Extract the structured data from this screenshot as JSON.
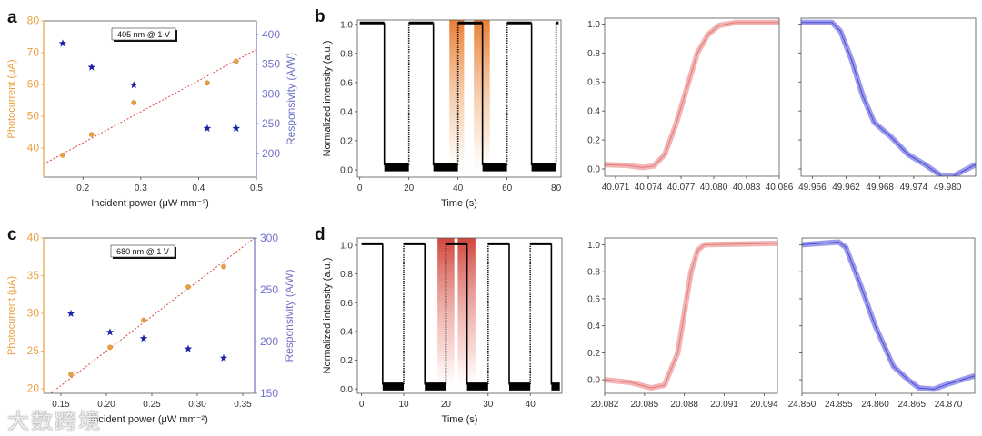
{
  "colors": {
    "photocurrent": "#e8a040",
    "responsivity": "#1a22a8",
    "fit": "#e0443c",
    "axis_right": "#7070c8",
    "rise": "#e87878",
    "fall": "#4a4ad8",
    "highlight_b": "#e8782a",
    "highlight_d": "#d03a30"
  },
  "watermark": "大数跨境",
  "chart_data": [
    {
      "id": "a",
      "panel_label": "a",
      "type": "scatter",
      "annotation": "405 nm @ 1 V",
      "xlabel": "Incident power (μW mm⁻²)",
      "ylabel": "Photocurrent (μA)",
      "y2label": "Responsivity (A/W)",
      "xlim": [
        0.132,
        0.5
      ],
      "ylim": [
        30.9,
        80
      ],
      "y2lim": [
        160,
        423
      ],
      "xticks": [
        0.2,
        0.3,
        0.4,
        0.5
      ],
      "xticklabels": [
        "0.2",
        "0.3",
        "0.4",
        "0.5"
      ],
      "yticks": [
        40,
        50,
        60,
        70,
        80
      ],
      "yticklabels": [
        "40",
        "50",
        "60",
        "70",
        "80"
      ],
      "y2ticks": [
        200,
        250,
        300,
        350,
        400
      ],
      "y2ticklabels": [
        "200",
        "250",
        "300",
        "350",
        "400"
      ],
      "series": [
        {
          "name": "Photocurrent",
          "axis": "left",
          "marker": "circle",
          "x": [
            0.165,
            0.215,
            0.288,
            0.415,
            0.465
          ],
          "y": [
            37.8,
            44.3,
            54.3,
            60.5,
            67.3
          ]
        },
        {
          "name": "Responsivity",
          "axis": "right",
          "marker": "star",
          "x": [
            0.165,
            0.215,
            0.288,
            0.415,
            0.465
          ],
          "y": [
            385,
            345,
            315,
            242,
            242
          ]
        }
      ],
      "fit": {
        "x": [
          0.132,
          0.5
        ],
        "y": [
          35,
          71
        ]
      }
    },
    {
      "id": "c",
      "panel_label": "c",
      "type": "scatter",
      "annotation": "680 nm @ 1 V",
      "xlabel": "Incident power (μW mm⁻²)",
      "ylabel": "Photocurrent (μA)",
      "y2label": "Responsivity (A/W)",
      "xlim": [
        0.131,
        0.363
      ],
      "ylim": [
        19.4,
        40
      ],
      "y2lim": [
        150,
        300
      ],
      "xticks": [
        0.15,
        0.2,
        0.25,
        0.3,
        0.35
      ],
      "xticklabels": [
        "0.15",
        "0.20",
        "0.25",
        "0.30",
        "0.35"
      ],
      "yticks": [
        20,
        25,
        30,
        35,
        40
      ],
      "yticklabels": [
        "20",
        "25",
        "30",
        "35",
        "40"
      ],
      "y2ticks": [
        150,
        200,
        250,
        300
      ],
      "y2ticklabels": [
        "150",
        "200",
        "250",
        "300"
      ],
      "series": [
        {
          "name": "Photocurrent",
          "axis": "left",
          "marker": "circle",
          "x": [
            0.161,
            0.204,
            0.241,
            0.29,
            0.329
          ],
          "y": [
            21.9,
            25.5,
            29.1,
            33.5,
            36.2
          ]
        },
        {
          "name": "Responsivity",
          "axis": "right",
          "marker": "star",
          "x": [
            0.161,
            0.204,
            0.241,
            0.29,
            0.329
          ],
          "y": [
            227,
            209,
            203,
            193,
            184
          ]
        }
      ],
      "fit": {
        "x": [
          0.139,
          0.363
        ],
        "y": [
          19.4,
          40
        ]
      }
    },
    {
      "id": "b",
      "panel_label": "b",
      "type": "line",
      "xlabel": "Time (s)",
      "ylabel": "Normalized intensity (a.u.)",
      "xlim": [
        -1,
        82
      ],
      "ylim": [
        -0.05,
        1.03
      ],
      "xticks": [
        0,
        20,
        40,
        60,
        80
      ],
      "xticklabels": [
        "0",
        "20",
        "40",
        "60",
        "80"
      ],
      "yticks": [
        0,
        0.2,
        0.4,
        0.6,
        0.8,
        1.0
      ],
      "yticklabels": [
        "0.0",
        "0.2",
        "0.4",
        "0.6",
        "0.8",
        "1.0"
      ],
      "square_wave": {
        "period": 10,
        "high": 1.01,
        "low": 0.03,
        "start": 0,
        "end": 81
      },
      "highlights": [
        [
          36.5,
          42.5
        ],
        [
          46.5,
          53
        ]
      ]
    },
    {
      "id": "d",
      "panel_label": "d",
      "type": "line",
      "xlabel": "Time (s)",
      "ylabel": "Normalized intensity (a.u.)",
      "xlim": [
        -1,
        47.5
      ],
      "ylim": [
        -0.03,
        1.05
      ],
      "xticks": [
        0,
        10,
        20,
        30,
        40
      ],
      "xticklabels": [
        "0",
        "10",
        "20",
        "30",
        "40"
      ],
      "yticks": [
        0,
        0.2,
        0.4,
        0.6,
        0.8,
        1.0
      ],
      "yticklabels": [
        "0.0",
        "0.2",
        "0.4",
        "0.6",
        "0.8",
        "1.0"
      ],
      "square_wave": {
        "period": 5,
        "high": 1.01,
        "low": 0.03,
        "start": 0,
        "end": 47
      },
      "highlights": [
        [
          18,
          22
        ],
        [
          22.8,
          27
        ]
      ]
    },
    {
      "id": "b-rise",
      "type": "line",
      "color_key": "rise",
      "xlim": [
        40.07,
        40.086
      ],
      "ylim": [
        -0.05,
        1.04
      ],
      "xticks": [
        40.071,
        40.074,
        40.077,
        40.08,
        40.083,
        40.086
      ],
      "xticklabels": [
        "40.071",
        "40.074",
        "40.077",
        "40.080",
        "40.083",
        "40.086"
      ],
      "yticks": [
        0,
        0.2,
        0.4,
        0.6,
        0.8,
        1.0
      ],
      "yticklabels": [
        "0.0",
        "0.2",
        "0.4",
        "0.6",
        "0.8",
        "1.0"
      ],
      "x": [
        40.07,
        40.072,
        40.0735,
        40.0745,
        40.0755,
        40.0765,
        40.0775,
        40.0785,
        40.0795,
        40.0805,
        40.082,
        40.086
      ],
      "y": [
        0.03,
        0.025,
        0.01,
        0.02,
        0.1,
        0.3,
        0.55,
        0.8,
        0.93,
        0.99,
        1.01,
        1.01
      ]
    },
    {
      "id": "b-fall",
      "type": "line",
      "color_key": "fall",
      "xlim": [
        49.954,
        49.985
      ],
      "ylim": [
        -0.05,
        1.04
      ],
      "xticks": [
        49.956,
        49.962,
        49.968,
        49.974,
        49.98
      ],
      "xticklabels": [
        "49.956",
        "49.962",
        "49.968",
        "49.974",
        "49.980"
      ],
      "yticks": [
        0,
        0.2,
        0.4,
        0.6,
        0.8,
        1.0
      ],
      "yticklabels": [],
      "x": [
        49.954,
        49.9595,
        49.961,
        49.963,
        49.965,
        49.967,
        49.97,
        49.973,
        49.976,
        49.979,
        49.981,
        49.985
      ],
      "y": [
        1.01,
        1.01,
        0.95,
        0.75,
        0.5,
        0.32,
        0.22,
        0.1,
        0.03,
        -0.05,
        -0.05,
        0.03
      ]
    },
    {
      "id": "d-rise",
      "type": "line",
      "color_key": "rise",
      "xlim": [
        20.082,
        20.095
      ],
      "ylim": [
        -0.1,
        1.05
      ],
      "xticks": [
        20.082,
        20.085,
        20.088,
        20.091,
        20.094
      ],
      "xticklabels": [
        "20.082",
        "20.085",
        "20.088",
        "20.091",
        "20.094"
      ],
      "yticks": [
        0,
        0.2,
        0.4,
        0.6,
        0.8,
        1.0
      ],
      "yticklabels": [
        "0.0",
        "0.2",
        "0.4",
        "0.6",
        "0.8",
        "1.0"
      ],
      "x": [
        20.082,
        20.084,
        20.0855,
        20.0865,
        20.0875,
        20.088,
        20.0885,
        20.089,
        20.0895,
        20.095
      ],
      "y": [
        0.0,
        -0.02,
        -0.06,
        -0.04,
        0.2,
        0.5,
        0.8,
        0.96,
        1.0,
        1.01
      ]
    },
    {
      "id": "d-fall",
      "type": "line",
      "color_key": "fall",
      "xlim": [
        24.85,
        24.8736
      ],
      "ylim": [
        -0.1,
        1.05
      ],
      "xticks": [
        24.85,
        24.855,
        24.86,
        24.865,
        24.87
      ],
      "xticklabels": [
        "24.850",
        "24.855",
        "24.860",
        "24.865",
        "24.870"
      ],
      "yticks": [
        0,
        0.2,
        0.4,
        0.6,
        0.8,
        1.0
      ],
      "yticklabels": [],
      "x": [
        24.85,
        24.855,
        24.856,
        24.858,
        24.86,
        24.8625,
        24.8645,
        24.866,
        24.868,
        24.87,
        24.8736
      ],
      "y": [
        1.0,
        1.02,
        0.98,
        0.7,
        0.4,
        0.1,
        0.0,
        -0.06,
        -0.07,
        -0.03,
        0.03
      ]
    }
  ]
}
